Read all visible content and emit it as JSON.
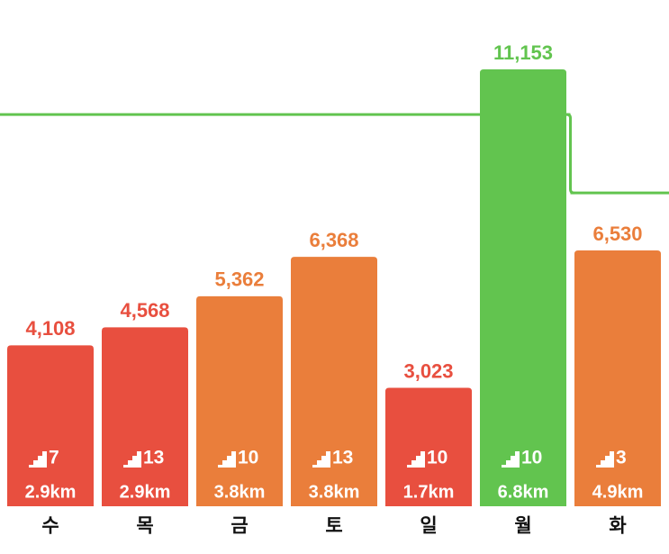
{
  "chart_data": {
    "type": "bar",
    "categories": [
      "수",
      "목",
      "금",
      "토",
      "일",
      "월",
      "화"
    ],
    "values": [
      4108,
      4568,
      5362,
      6368,
      3023,
      11153,
      6530
    ],
    "value_labels": [
      "4,108",
      "4,568",
      "5,362",
      "6,368",
      "3,023",
      "11,153",
      "6,530"
    ],
    "colors": [
      "#e84f3f",
      "#e84f3f",
      "#ea7e3b",
      "#ea7e3b",
      "#e84f3f",
      "#62c44f",
      "#ea7e3b"
    ],
    "floors": [
      7,
      13,
      10,
      13,
      10,
      10,
      3
    ],
    "distances": [
      "2.9km",
      "2.9km",
      "3.8km",
      "3.8km",
      "1.7km",
      "6.8km",
      "4.9km"
    ],
    "goal": {
      "values": [
        10000,
        10000,
        10000,
        10000,
        10000,
        10000,
        8000
      ],
      "color": "#62c44f"
    }
  }
}
